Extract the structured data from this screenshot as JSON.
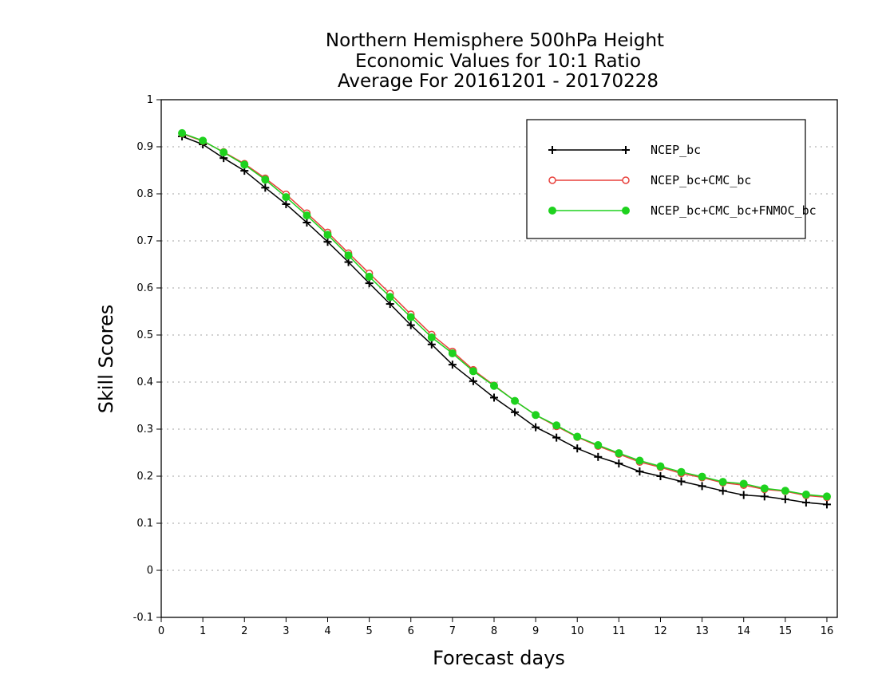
{
  "chart_data": {
    "type": "line",
    "title": [
      "Northern Hemisphere 500hPa Height",
      "Economic Values for 10:1 Ratio",
      "Average For 20161201 - 20170228"
    ],
    "xlabel": "Forecast days",
    "ylabel": "Skill Scores",
    "xlim": [
      0,
      16.25
    ],
    "ylim": [
      -0.1,
      1
    ],
    "xticks": [
      0,
      1,
      2,
      3,
      4,
      5,
      6,
      7,
      8,
      9,
      10,
      11,
      12,
      13,
      14,
      15,
      16
    ],
    "yticks": [
      -0.1,
      0,
      0.1,
      0.2,
      0.3,
      0.4,
      0.5,
      0.6,
      0.7,
      0.8,
      0.9,
      1
    ],
    "ytick_labels": [
      "-0.1",
      "0",
      "0.1",
      "0.2",
      "0.3",
      "0.4",
      "0.5",
      "0.6",
      "0.7",
      "0.8",
      "0.9",
      "1"
    ],
    "grid": "horizontal-dotted",
    "legend_position": "top-right",
    "x": [
      0.5,
      1,
      1.5,
      2,
      2.5,
      3,
      3.5,
      4,
      4.5,
      5,
      5.5,
      6,
      6.5,
      7,
      7.5,
      8,
      8.5,
      9,
      9.5,
      10,
      10.5,
      11,
      11.5,
      12,
      12.5,
      13,
      13.5,
      14,
      14.5,
      15,
      15.5,
      16
    ],
    "series": [
      {
        "name": "NCEP_bc",
        "color": "#000000",
        "marker": "plus",
        "values": [
          0.922,
          0.905,
          0.876,
          0.849,
          0.813,
          0.778,
          0.739,
          0.698,
          0.655,
          0.61,
          0.566,
          0.521,
          0.48,
          0.437,
          0.402,
          0.367,
          0.336,
          0.304,
          0.282,
          0.259,
          0.241,
          0.227,
          0.21,
          0.2,
          0.189,
          0.179,
          0.169,
          0.16,
          0.157,
          0.151,
          0.144,
          0.14
        ]
      },
      {
        "name": "NCEP_bc+CMC_bc",
        "color": "#e8413c",
        "marker": "open-circle",
        "values": [
          0.928,
          0.912,
          0.889,
          0.864,
          0.833,
          0.799,
          0.759,
          0.718,
          0.674,
          0.631,
          0.588,
          0.544,
          0.501,
          0.465,
          0.426,
          0.393,
          0.36,
          0.33,
          0.306,
          0.283,
          0.264,
          0.247,
          0.23,
          0.219,
          0.206,
          0.197,
          0.186,
          0.181,
          0.172,
          0.168,
          0.159,
          0.155
        ]
      },
      {
        "name": "NCEP_bc+CMC_bc+FNMOC_bc",
        "color": "#1ed21e",
        "marker": "filled-circle",
        "values": [
          0.929,
          0.913,
          0.888,
          0.862,
          0.83,
          0.793,
          0.754,
          0.713,
          0.669,
          0.624,
          0.581,
          0.538,
          0.495,
          0.461,
          0.423,
          0.392,
          0.36,
          0.33,
          0.308,
          0.284,
          0.266,
          0.249,
          0.233,
          0.221,
          0.209,
          0.199,
          0.188,
          0.184,
          0.174,
          0.169,
          0.161,
          0.157
        ]
      }
    ]
  }
}
